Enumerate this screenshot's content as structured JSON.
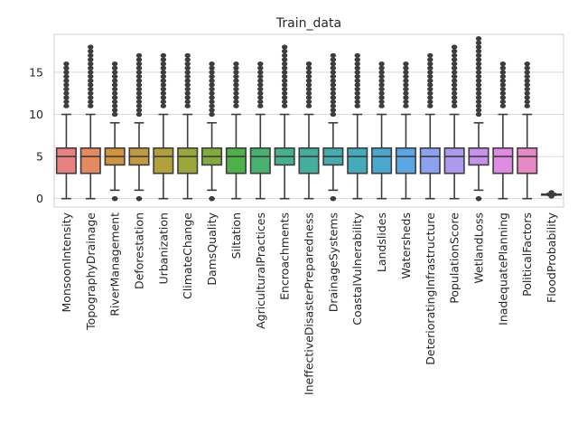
{
  "chart_data": {
    "type": "box",
    "title": "Train_data",
    "xlabel": "",
    "ylabel": "",
    "ylim": [
      -1,
      19.5
    ],
    "yticks": [
      0,
      5,
      10,
      15
    ],
    "grid": "horizontal",
    "categories": [
      {
        "name": "MonsoonIntensity",
        "color": "#e8817f",
        "q1": 3,
        "median": 5,
        "q3": 6,
        "whislo": 0,
        "whishi": 10,
        "flier_max": 16
      },
      {
        "name": "TopographyDrainage",
        "color": "#e48a5e",
        "q1": 3,
        "median": 5,
        "q3": 6,
        "whislo": 0,
        "whishi": 10,
        "flier_max": 18
      },
      {
        "name": "RiverManagement",
        "color": "#d1953f",
        "q1": 4,
        "median": 5,
        "q3": 6,
        "whislo": 1,
        "whishi": 9,
        "flier_max": 16,
        "flier_min": 0
      },
      {
        "name": "Deforestation",
        "color": "#c29a40",
        "q1": 4,
        "median": 5,
        "q3": 6,
        "whislo": 1,
        "whishi": 9,
        "flier_max": 17,
        "flier_min": 0
      },
      {
        "name": "Urbanization",
        "color": "#b0a13a",
        "q1": 3,
        "median": 5,
        "q3": 6,
        "whislo": 0,
        "whishi": 10,
        "flier_max": 17
      },
      {
        "name": "ClimateChange",
        "color": "#9aa83b",
        "q1": 3,
        "median": 5,
        "q3": 6,
        "whislo": 0,
        "whishi": 10,
        "flier_max": 17
      },
      {
        "name": "DamsQuality",
        "color": "#7fad3d",
        "q1": 4,
        "median": 5,
        "q3": 6,
        "whislo": 1,
        "whishi": 9,
        "flier_max": 16,
        "flier_min": 0
      },
      {
        "name": "Siltation",
        "color": "#4db14a",
        "q1": 3,
        "median": 5,
        "q3": 6,
        "whislo": 0,
        "whishi": 10,
        "flier_max": 16
      },
      {
        "name": "AgriculturalPractices",
        "color": "#47b16f",
        "q1": 3,
        "median": 5,
        "q3": 6,
        "whislo": 0,
        "whishi": 10,
        "flier_max": 16
      },
      {
        "name": "Encroachments",
        "color": "#45b08e",
        "q1": 4,
        "median": 5,
        "q3": 6,
        "whislo": 0,
        "whishi": 10,
        "flier_max": 18
      },
      {
        "name": "IneffectiveDisasterPreparedness",
        "color": "#43ae9e",
        "q1": 3,
        "median": 5,
        "q3": 6,
        "whislo": 0,
        "whishi": 10,
        "flier_max": 16
      },
      {
        "name": "DrainageSystems",
        "color": "#44acad",
        "q1": 4,
        "median": 5,
        "q3": 6,
        "whislo": 1,
        "whishi": 9,
        "flier_max": 17,
        "flier_min": 0
      },
      {
        "name": "CoastalVulnerability",
        "color": "#46aabd",
        "q1": 3,
        "median": 5,
        "q3": 6,
        "whislo": 0,
        "whishi": 10,
        "flier_max": 17
      },
      {
        "name": "Landslides",
        "color": "#4aa8cf",
        "q1": 3,
        "median": 5,
        "q3": 6,
        "whislo": 0,
        "whishi": 10,
        "flier_max": 16
      },
      {
        "name": "Watersheds",
        "color": "#5aa5e3",
        "q1": 3,
        "median": 5,
        "q3": 6,
        "whislo": 0,
        "whishi": 10,
        "flier_max": 16
      },
      {
        "name": "DeterioratingInfrastructure",
        "color": "#8aa2ef",
        "q1": 3,
        "median": 5,
        "q3": 6,
        "whislo": 0,
        "whishi": 10,
        "flier_max": 17
      },
      {
        "name": "PopulationScore",
        "color": "#ad99ee",
        "q1": 3,
        "median": 5,
        "q3": 6,
        "whislo": 0,
        "whishi": 10,
        "flier_max": 18
      },
      {
        "name": "WetlandLoss",
        "color": "#c692ec",
        "q1": 4,
        "median": 5,
        "q3": 6,
        "whislo": 1,
        "whishi": 9,
        "flier_max": 19,
        "flier_min": 0
      },
      {
        "name": "InadequatePlanning",
        "color": "#e18ae4",
        "q1": 3,
        "median": 5,
        "q3": 6,
        "whislo": 0,
        "whishi": 10,
        "flier_max": 16
      },
      {
        "name": "PoliticalFactors",
        "color": "#e789c5",
        "q1": 3,
        "median": 5,
        "q3": 6,
        "whislo": 0,
        "whishi": 10,
        "flier_max": 16
      },
      {
        "name": "FloodProbability",
        "color": "#ea86a8",
        "q1": 0.47,
        "median": 0.5,
        "q3": 0.53,
        "whislo": 0.39,
        "whishi": 0.61,
        "flier_max": 0.73,
        "flier_min": 0.28
      }
    ]
  }
}
